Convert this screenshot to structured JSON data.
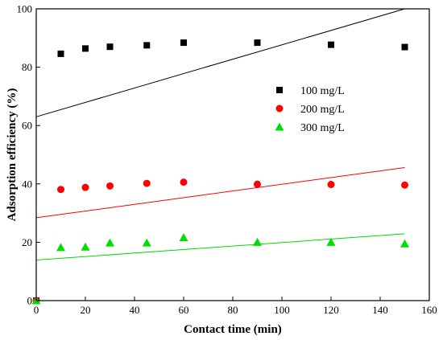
{
  "chart_data": {
    "type": "scatter",
    "title": "",
    "xlabel": "Contact time (min)",
    "ylabel": "Adsorption  efficiency (%)",
    "xlim": [
      0,
      160
    ],
    "ylim": [
      0,
      100
    ],
    "xticks": [
      0,
      20,
      40,
      60,
      80,
      100,
      120,
      140,
      160
    ],
    "yticks": [
      0,
      20,
      40,
      60,
      80,
      100
    ],
    "grid": false,
    "legend_position": "right",
    "series": [
      {
        "name": "100 mg/L",
        "marker": "square",
        "color": "#000000",
        "x": [
          0,
          10,
          20,
          30,
          45,
          60,
          90,
          120,
          150
        ],
        "y": [
          0,
          84.6,
          86.4,
          87.0,
          87.5,
          88.4,
          88.4,
          87.7,
          86.9
        ],
        "fit_line": {
          "x": [
            0,
            150
          ],
          "y": [
            63.0,
            100.0
          ]
        }
      },
      {
        "name": "200 mg/L",
        "marker": "circle",
        "color": "#ff0000",
        "x": [
          0,
          10,
          20,
          30,
          45,
          60,
          90,
          120,
          150
        ],
        "y": [
          0,
          38.1,
          38.8,
          39.3,
          40.2,
          40.6,
          39.9,
          39.8,
          39.6
        ],
        "fit_line": {
          "x": [
            0,
            150
          ],
          "y": [
            28.4,
            45.6
          ]
        }
      },
      {
        "name": "300 mg/L",
        "marker": "triangle",
        "color": "#00dd00",
        "x": [
          0,
          10,
          20,
          30,
          45,
          60,
          90,
          120,
          150
        ],
        "y": [
          0,
          18.2,
          18.4,
          19.8,
          19.8,
          21.6,
          20.0,
          20.0,
          19.5
        ],
        "fit_line": {
          "x": [
            0,
            150
          ],
          "y": [
            13.9,
            22.9
          ]
        }
      }
    ]
  }
}
